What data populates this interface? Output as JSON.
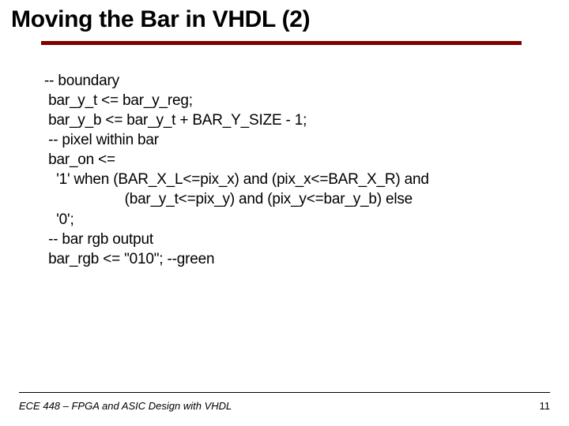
{
  "accent_color": "#800000",
  "title": "Moving the Bar in VHDL (2)",
  "code_lines": [
    "-- boundary",
    " bar_y_t <= bar_y_reg;",
    " bar_y_b <= bar_y_t + BAR_Y_SIZE - 1;",
    "",
    " -- pixel within bar",
    " bar_on <=",
    "   '1' when (BAR_X_L<=pix_x) and (pix_x<=BAR_X_R) and",
    "                    (bar_y_t<=pix_y) and (pix_y<=bar_y_b) else",
    "   '0';",
    "",
    " -- bar rgb output",
    " bar_rgb <= \"010\"; --green"
  ],
  "footer": "ECE 448 – FPGA and ASIC Design with VHDL",
  "page_number": "11"
}
